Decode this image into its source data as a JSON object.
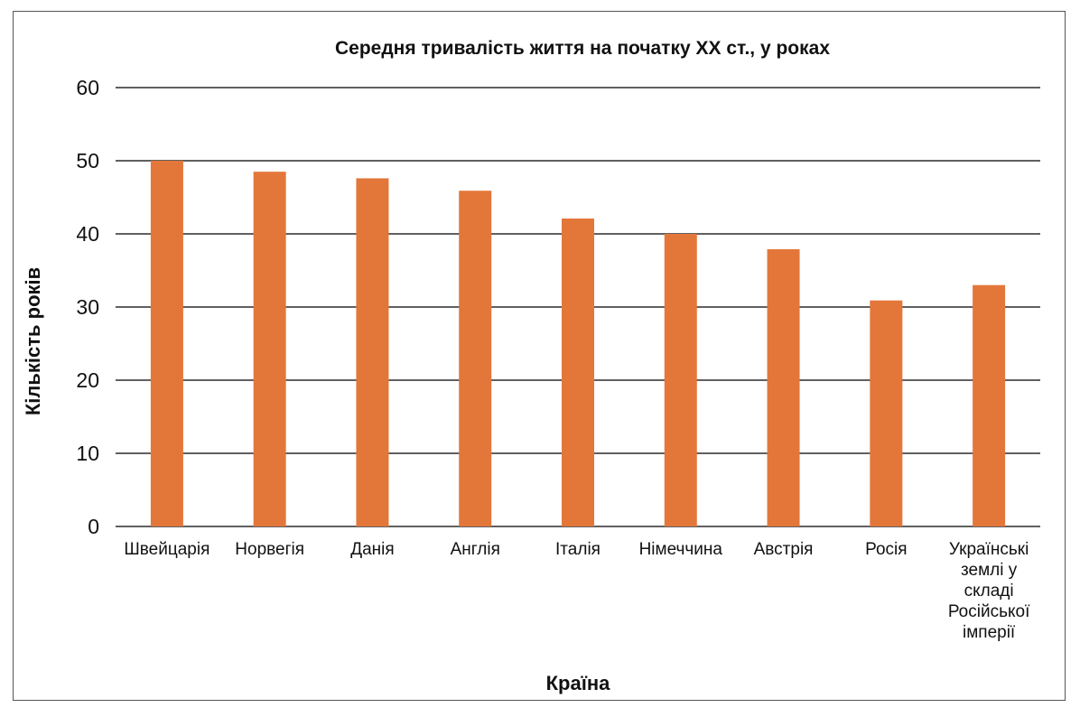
{
  "chart_data": {
    "type": "bar",
    "title": "Середня тривалість життя на початку XX ст., у роках",
    "xlabel": "Країна",
    "ylabel": "Кількість років",
    "ylim": [
      0,
      60
    ],
    "yticks": [
      0,
      10,
      20,
      30,
      40,
      50,
      60
    ],
    "grid": true,
    "categories": [
      "Швейцарія",
      "Норвегія",
      "Данія",
      "Англія",
      "Італія",
      "Німеччина",
      "Австрія",
      "Росія",
      "Українські землі у складі Російської імперії"
    ],
    "category_lines": [
      [
        "Швейцарія"
      ],
      [
        "Норвегія"
      ],
      [
        "Данія"
      ],
      [
        "Англія"
      ],
      [
        "Італія"
      ],
      [
        "Німеччина"
      ],
      [
        "Австрія"
      ],
      [
        "Росія"
      ],
      [
        "Українські",
        "землі у",
        "складі",
        "Російської",
        "імперії"
      ]
    ],
    "values": [
      50,
      48.5,
      47.6,
      45.9,
      42.1,
      40,
      37.9,
      30.9,
      33
    ],
    "bar_color": "#e3773a",
    "grid_color": "#000000"
  }
}
